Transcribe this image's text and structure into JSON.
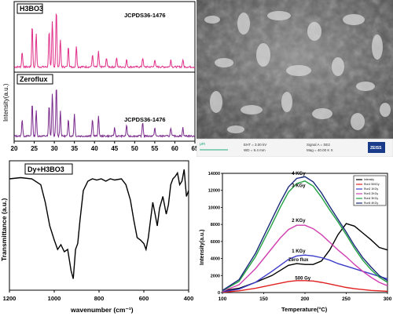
{
  "colors": {
    "h3bo3_line": "#e0308a",
    "zeroflux_line": "#7a2a8c",
    "ftir_line": "#000000",
    "tl_zero": "#000000",
    "tl_500": "#e02020",
    "tl_1k": "#3b3bc8",
    "tl_2k": "#d040b0",
    "tl_3k": "#20a040",
    "tl_4k": "#1a2a7a"
  },
  "xrd": {
    "top_label": "H3BO3",
    "bottom_label": "Zeroflux",
    "ref_top": "JCPDS36-1476",
    "ref_bottom": "JCPDS36-1476",
    "ylabel": "Intensity(a.u.)",
    "xticks": [
      "20",
      "25",
      "30",
      "35",
      "40",
      "45",
      "50",
      "55",
      "60",
      "65"
    ]
  },
  "sem": {
    "scale_unit": "μm",
    "eht": "EHT = 3.00 kV",
    "wd": "WD = 9.4 mm",
    "signal": "Signal A = SE2",
    "mag": "Mag = 40.00 K X",
    "logo": "ZEISS"
  },
  "ftir": {
    "label": "Dy+H3BO3",
    "ylabel": "Transmittance (a.u.)",
    "xlabel": "wavenumber (cm⁻¹)",
    "xticks": [
      "1200",
      "1000",
      "800",
      "600",
      "400"
    ]
  },
  "chart_data": [
    {
      "type": "line",
      "title": "",
      "xlabel": "",
      "ylabel": "Intensity(a.u.)",
      "xlim": [
        20,
        65
      ],
      "series": [
        {
          "name": "H3BO3",
          "peaks": [
            [
              22,
              0.25
            ],
            [
              24.5,
              0.7
            ],
            [
              25.5,
              0.55
            ],
            [
              28.7,
              0.6
            ],
            [
              29.5,
              0.75
            ],
            [
              30.5,
              0.95
            ],
            [
              31.5,
              0.45
            ],
            [
              33.5,
              0.35
            ],
            [
              35.5,
              0.35
            ],
            [
              39.5,
              0.2
            ],
            [
              41,
              0.25
            ],
            [
              43,
              0.15
            ],
            [
              45.5,
              0.15
            ],
            [
              48,
              0.12
            ],
            [
              52,
              0.15
            ],
            [
              55,
              0.12
            ],
            [
              59,
              0.12
            ],
            [
              62,
              0.12
            ]
          ]
        },
        {
          "name": "Zeroflux",
          "peaks": [
            [
              22,
              0.3
            ],
            [
              24.5,
              0.6
            ],
            [
              25.5,
              0.45
            ],
            [
              28.7,
              0.55
            ],
            [
              29.5,
              0.75
            ],
            [
              30.5,
              0.9
            ],
            [
              31.5,
              0.45
            ],
            [
              33.5,
              0.3
            ],
            [
              35,
              0.4
            ],
            [
              39.5,
              0.3
            ],
            [
              41,
              0.35
            ],
            [
              45,
              0.15
            ],
            [
              48,
              0.2
            ],
            [
              52,
              0.25
            ],
            [
              55,
              0.15
            ],
            [
              59,
              0.15
            ],
            [
              62,
              0.15
            ]
          ]
        }
      ]
    },
    {
      "type": "line",
      "title": "",
      "xlabel": "wavenumber (cm⁻¹)",
      "ylabel": "Transmittance (a.u.)",
      "xlim": [
        1200,
        400
      ],
      "series": [
        {
          "name": "Dy+H3BO3",
          "x": [
            1200,
            1150,
            1100,
            1060,
            1040,
            1020,
            1000,
            985,
            970,
            955,
            940,
            925,
            915,
            905,
            895,
            885,
            870,
            850,
            830,
            810,
            790,
            770,
            750,
            730,
            700,
            680,
            660,
            645,
            630,
            615,
            600,
            590,
            580,
            570,
            560,
            550,
            540,
            530,
            515,
            500,
            490,
            480,
            470,
            460,
            450,
            440,
            430,
            420,
            410,
            400
          ],
          "y": [
            0.9,
            0.91,
            0.9,
            0.85,
            0.7,
            0.5,
            0.38,
            0.3,
            0.34,
            0.28,
            0.3,
            0.12,
            0.05,
            0.3,
            0.35,
            0.55,
            0.8,
            0.88,
            0.9,
            0.89,
            0.9,
            0.88,
            0.9,
            0.89,
            0.9,
            0.85,
            0.72,
            0.55,
            0.4,
            0.38,
            0.35,
            0.3,
            0.4,
            0.55,
            0.7,
            0.6,
            0.5,
            0.65,
            0.75,
            0.6,
            0.68,
            0.85,
            0.9,
            0.92,
            0.95,
            0.85,
            0.88,
            0.98,
            0.75,
            0.8
          ]
        }
      ]
    },
    {
      "type": "line",
      "title": "",
      "xlabel": "Temperature(°C)",
      "ylabel": "Intensity(a.u.)",
      "xlim": [
        100,
        300
      ],
      "ylim": [
        0,
        14000
      ],
      "xticks": [
        100,
        150,
        200,
        250,
        300
      ],
      "yticks": [
        0,
        2000,
        4000,
        6000,
        8000,
        10000,
        12000,
        14000
      ],
      "legend": {
        "position": "top-right",
        "entries": [
          "Intensity",
          "Run1 500Gy",
          "Run2 1KGy",
          "Run3 2KGy",
          "Run4 3KGy",
          "Run5 4KGy"
        ]
      },
      "annotations": [
        "4 KGy",
        "3 KGy",
        "2 KGy",
        "1 KGy",
        "Zero flux",
        "500 Gy"
      ],
      "x": [
        100,
        120,
        140,
        160,
        170,
        180,
        190,
        200,
        210,
        220,
        230,
        240,
        250,
        260,
        270,
        280,
        290,
        300
      ],
      "series": [
        {
          "name": "Zero flux",
          "values": [
            200,
            500,
            1200,
            2000,
            2600,
            3200,
            3400,
            3300,
            3300,
            3700,
            5000,
            6800,
            8100,
            7800,
            7000,
            6200,
            5300,
            5000
          ]
        },
        {
          "name": "500 Gy",
          "values": [
            50,
            200,
            500,
            900,
            1100,
            1300,
            1400,
            1400,
            1350,
            1200,
            1000,
            800,
            600,
            450,
            350,
            250,
            200,
            150
          ]
        },
        {
          "name": "1 KGy",
          "values": [
            100,
            400,
            1200,
            2500,
            3200,
            3900,
            4300,
            4400,
            4300,
            4100,
            3800,
            3400,
            3100,
            2800,
            2500,
            2200,
            1900,
            1600
          ]
        },
        {
          "name": "2 KGy",
          "values": [
            150,
            900,
            2800,
            5200,
            6400,
            7400,
            7900,
            7900,
            7500,
            6800,
            5900,
            5000,
            4200,
            3300,
            2500,
            1800,
            1200,
            800
          ]
        },
        {
          "name": "3 KGy",
          "values": [
            200,
            1300,
            4200,
            8000,
            10000,
            11800,
            12800,
            13100,
            12500,
            11200,
            9700,
            8300,
            6800,
            5200,
            3800,
            2700,
            1800,
            1200
          ]
        },
        {
          "name": "4 KGy",
          "values": [
            250,
            1500,
            4600,
            8600,
            10600,
            12400,
            13400,
            13600,
            13000,
            11700,
            10100,
            8600,
            7100,
            5500,
            4100,
            3000,
            2000,
            1400
          ]
        }
      ]
    }
  ]
}
